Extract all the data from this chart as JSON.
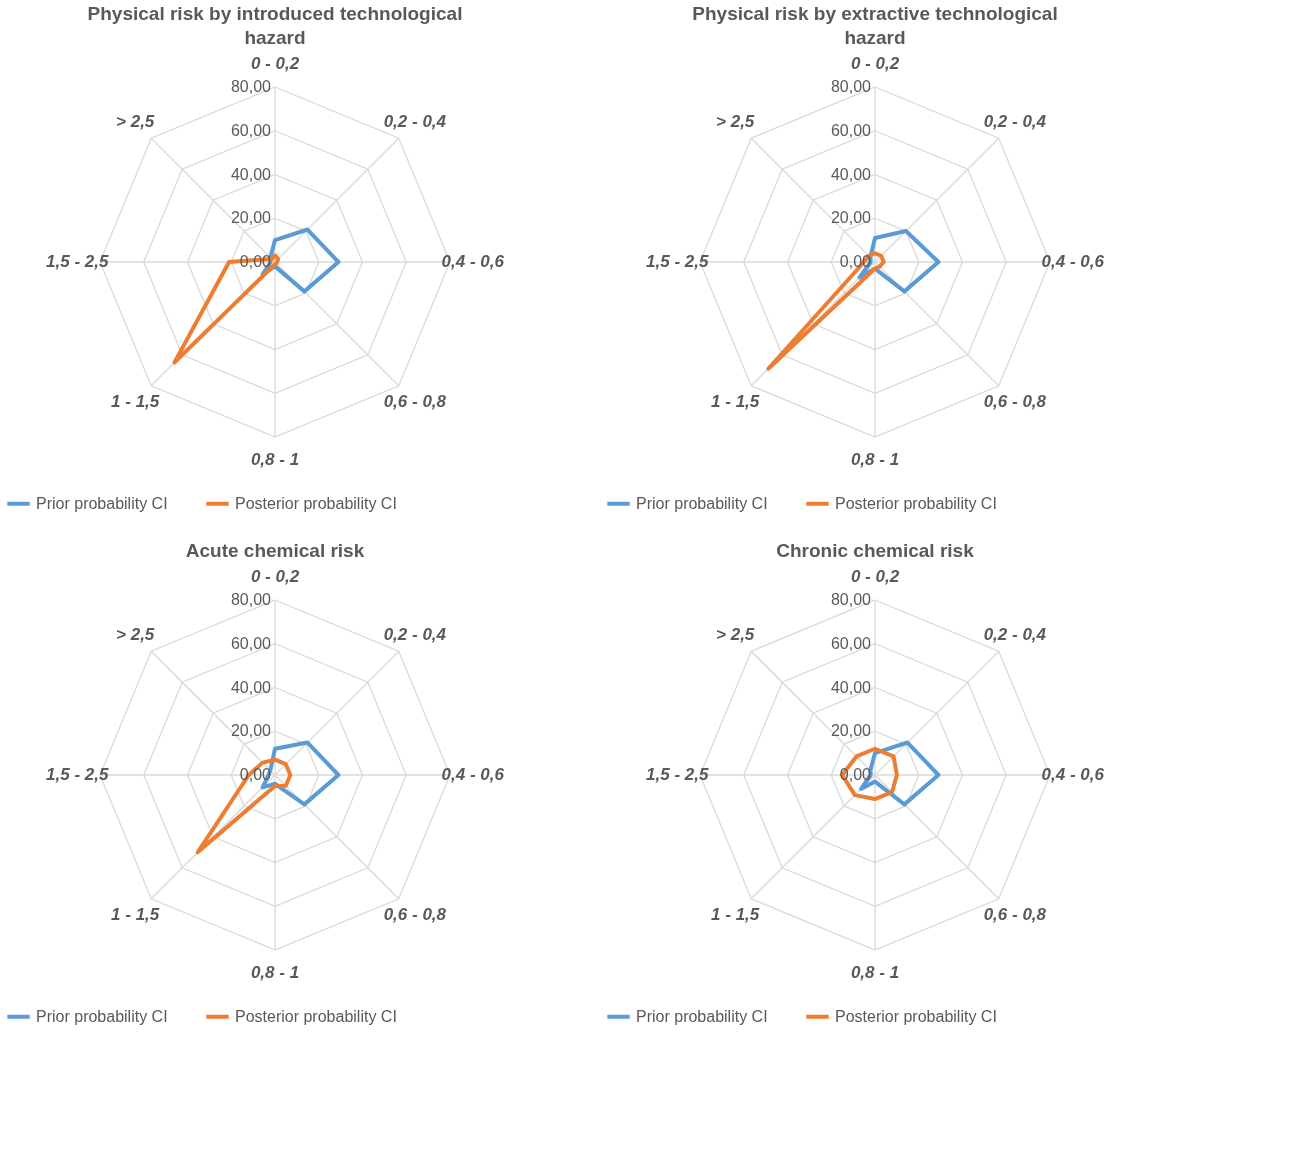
{
  "chart_data": [
    {
      "type": "radar",
      "title": "Physical risk by introduced technological hazard",
      "categories": [
        "0 - 0,2",
        "0,2 - 0,4",
        "0,4 - 0,6",
        "0,6 - 0,8",
        "0,8 - 1",
        "1 - 1,5",
        "1,5 - 2,5",
        "> 2,5"
      ],
      "ylim": [
        0,
        80
      ],
      "yticks": [
        {
          "value": 0,
          "label": "0,00"
        },
        {
          "value": 20,
          "label": "20,00"
        },
        {
          "value": 40,
          "label": "40,00"
        },
        {
          "value": 60,
          "label": "60,00"
        },
        {
          "value": 80,
          "label": "80,00"
        }
      ],
      "grid": true,
      "legend": "bottom",
      "series": [
        {
          "name": "Prior probability CI",
          "color": "#5b9bd5",
          "values": [
            10,
            21,
            29,
            19,
            2,
            8,
            2,
            3
          ]
        },
        {
          "name": "Posterior probability CI",
          "color": "#ed7d31",
          "values": [
            3,
            2,
            1,
            1,
            1,
            65,
            21,
            2
          ]
        }
      ]
    },
    {
      "type": "radar",
      "title": "Physical risk by extractive technological hazard",
      "categories": [
        "0 - 0,2",
        "0,2 - 0,4",
        "0,4 - 0,6",
        "0,6 - 0,8",
        "0,8 - 1",
        "1 - 1,5",
        "1,5 - 2,5",
        "> 2,5"
      ],
      "ylim": [
        0,
        80
      ],
      "yticks": [
        {
          "value": 0,
          "label": "0,00"
        },
        {
          "value": 20,
          "label": "20,00"
        },
        {
          "value": 40,
          "label": "40,00"
        },
        {
          "value": 60,
          "label": "60,00"
        },
        {
          "value": 80,
          "label": "80,00"
        }
      ],
      "grid": true,
      "legend": "bottom",
      "series": [
        {
          "name": "Prior probability CI",
          "color": "#5b9bd5",
          "values": [
            11,
            20,
            29,
            19,
            3,
            10,
            2,
            3
          ]
        },
        {
          "name": "Posterior probability CI",
          "color": "#ed7d31",
          "values": [
            4,
            4,
            4,
            3,
            3,
            69,
            5,
            4
          ]
        }
      ]
    },
    {
      "type": "radar",
      "title": "Acute chemical risk",
      "categories": [
        "0 - 0,2",
        "0,2 - 0,4",
        "0,4 - 0,6",
        "0,6 - 0,8",
        "0,8 - 1",
        "1 - 1,5",
        "1,5 - 2,5",
        "> 2,5"
      ],
      "ylim": [
        0,
        80
      ],
      "yticks": [
        {
          "value": 0,
          "label": "0,00"
        },
        {
          "value": 20,
          "label": "20,00"
        },
        {
          "value": 40,
          "label": "40,00"
        },
        {
          "value": 60,
          "label": "60,00"
        },
        {
          "value": 80,
          "label": "80,00"
        }
      ],
      "grid": true,
      "legend": "bottom",
      "series": [
        {
          "name": "Prior probability CI",
          "color": "#5b9bd5",
          "values": [
            12,
            21,
            29,
            19,
            4,
            8,
            3,
            3
          ]
        },
        {
          "name": "Posterior probability CI",
          "color": "#ed7d31",
          "values": [
            7,
            7,
            7,
            7,
            5,
            50,
            12,
            8
          ]
        }
      ]
    },
    {
      "type": "radar",
      "title": "Chronic chemical risk",
      "categories": [
        "0 - 0,2",
        "0,2 - 0,4",
        "0,4 - 0,6",
        "0,6 - 0,8",
        "0,8 - 1",
        "1 - 1,5",
        "1,5 - 2,5",
        "> 2,5"
      ],
      "ylim": [
        0,
        80
      ],
      "yticks": [
        {
          "value": 0,
          "label": "0,00"
        },
        {
          "value": 20,
          "label": "20,00"
        },
        {
          "value": 40,
          "label": "40,00"
        },
        {
          "value": 60,
          "label": "60,00"
        },
        {
          "value": 80,
          "label": "80,00"
        }
      ],
      "grid": true,
      "legend": "bottom",
      "series": [
        {
          "name": "Prior probability CI",
          "color": "#5b9bd5",
          "values": [
            10,
            21,
            29,
            19,
            3,
            9,
            2,
            3
          ]
        },
        {
          "name": "Posterior probability CI",
          "color": "#ed7d31",
          "values": [
            12,
            12,
            10,
            11,
            11,
            13,
            15,
            12
          ]
        }
      ]
    }
  ]
}
